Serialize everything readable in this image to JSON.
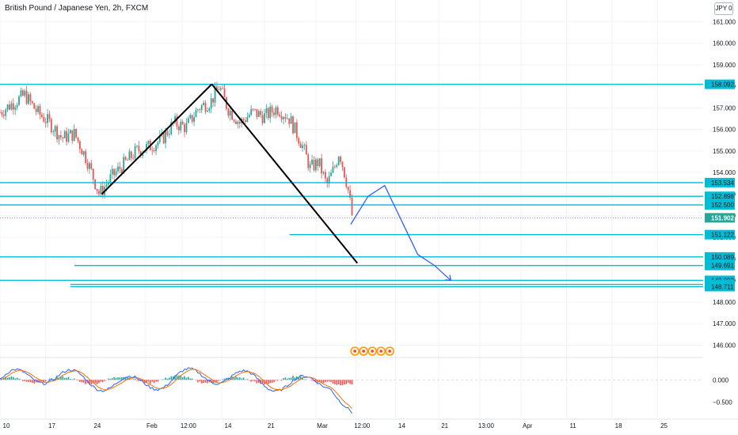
{
  "header": {
    "title": "British Pound / Japanese Yen, 2h, FXCM",
    "currency_badge": "JPY 0"
  },
  "colors": {
    "background": "#ffffff",
    "grid": "#f0f3fa",
    "up_candle": "#26a69a",
    "down_candle": "#ef5350",
    "level_line": "#00bcd4",
    "pattern_line": "#000000",
    "projection": "#2962ff",
    "axis_text": "#131722",
    "current_price_bg": "#26a69a",
    "macd": "#2962ff",
    "signal": "#ff6d00"
  },
  "chart_data": {
    "type": "candlestick",
    "symbol": "GBPJPY",
    "timeframe": "2h",
    "title": "British Pound / Japanese Yen, 2h, FXCM",
    "ylim": [
      145.5,
      162
    ],
    "y_ticks": [
      146.0,
      147.0,
      148.0,
      149.0,
      150.0,
      151.0,
      152.0,
      153.0,
      154.0,
      155.0,
      156.0,
      157.0,
      158.0,
      159.0,
      160.0,
      161.0
    ],
    "y_tick_labels": [
      "146.000",
      "147.000",
      "148.000",
      "149.000",
      "150.000",
      "151.000",
      "152.000",
      "153.000",
      "154.000",
      "155.000",
      "156.000",
      "157.000",
      "158.000",
      "159.000",
      "160.000",
      "161.000"
    ],
    "x_ticks": [
      "10",
      "17",
      "24",
      "Feb",
      "12:00",
      "14",
      "21",
      "Mar",
      "12:00",
      "14",
      "21",
      "13:00",
      "Apr",
      "11",
      "18",
      "25"
    ],
    "x_range": [
      0,
      85
    ],
    "x_tick_positions": [
      0,
      5.5,
      11,
      17.6,
      22,
      26.8,
      32,
      38.2,
      43,
      47.8,
      53,
      58,
      63,
      68.5,
      74,
      79.5
    ],
    "price_path": [
      [
        0,
        156.8
      ],
      [
        1.5,
        157.2
      ],
      [
        3,
        157.6
      ],
      [
        4.5,
        156.8
      ],
      [
        6,
        156.3
      ],
      [
        7.5,
        155.6
      ],
      [
        9,
        155.8
      ],
      [
        10.5,
        154.6
      ],
      [
        12,
        153.0
      ],
      [
        13.5,
        153.8
      ],
      [
        15,
        154.4
      ],
      [
        16.5,
        155.0
      ],
      [
        18,
        155.2
      ],
      [
        19.5,
        155.5
      ],
      [
        21,
        156.3
      ],
      [
        22.5,
        156.1
      ],
      [
        24,
        157.0
      ],
      [
        25.5,
        157.3
      ],
      [
        26.5,
        158.0
      ],
      [
        27.5,
        157.0
      ],
      [
        29,
        156.3
      ],
      [
        30.5,
        156.8
      ],
      [
        32,
        156.6
      ],
      [
        33.5,
        157.0
      ],
      [
        35,
        156.5
      ],
      [
        36.5,
        155.3
      ],
      [
        37.5,
        154.2
      ],
      [
        38.5,
        154.5
      ],
      [
        39.5,
        153.4
      ],
      [
        40.5,
        154.3
      ],
      [
        41,
        155.0
      ],
      [
        42,
        153.4
      ],
      [
        42.6,
        151.9
      ]
    ],
    "levels": [
      {
        "value": 158.092,
        "label": "158.092",
        "x_start": 0
      },
      {
        "value": 153.534,
        "label": "153.534",
        "x_start": 0
      },
      {
        "value": 152.898,
        "label": "152.898",
        "x_start": 0
      },
      {
        "value": 152.5,
        "label": "152.500",
        "x_start": 0
      },
      {
        "value": 151.122,
        "label": "151.122",
        "x_start": 35
      },
      {
        "value": 150.089,
        "label": "150.089",
        "x_start": 0
      },
      {
        "value": 149.691,
        "label": "149.691",
        "x_start": 9
      },
      {
        "value": 149.003,
        "label": "149.003",
        "x_start": 0
      },
      {
        "value": 148.817,
        "label": "148.817",
        "x_start": 8.5
      },
      {
        "value": 148.711,
        "label": "148.711",
        "x_start": 8.5
      }
    ],
    "current_price": {
      "value": 151.902,
      "label": "151.902"
    },
    "pattern_lines": [
      [
        [
          12.3,
          153.0
        ],
        [
          25.6,
          158.1
        ]
      ],
      [
        [
          25.6,
          158.1
        ],
        [
          43.2,
          149.8
        ]
      ]
    ],
    "projection": [
      [
        42.4,
        151.6
      ],
      [
        44.5,
        152.9
      ],
      [
        46.5,
        153.4
      ],
      [
        50.5,
        150.2
      ],
      [
        52.5,
        149.7
      ],
      [
        54.5,
        149.0
      ]
    ],
    "indicator": {
      "type": "macd",
      "y_ticks": [
        0.0,
        -0.5
      ],
      "y_tick_labels": [
        "0.000",
        "−0.500"
      ],
      "ylim": [
        -0.85,
        0.45
      ]
    },
    "event_markers": 5
  }
}
